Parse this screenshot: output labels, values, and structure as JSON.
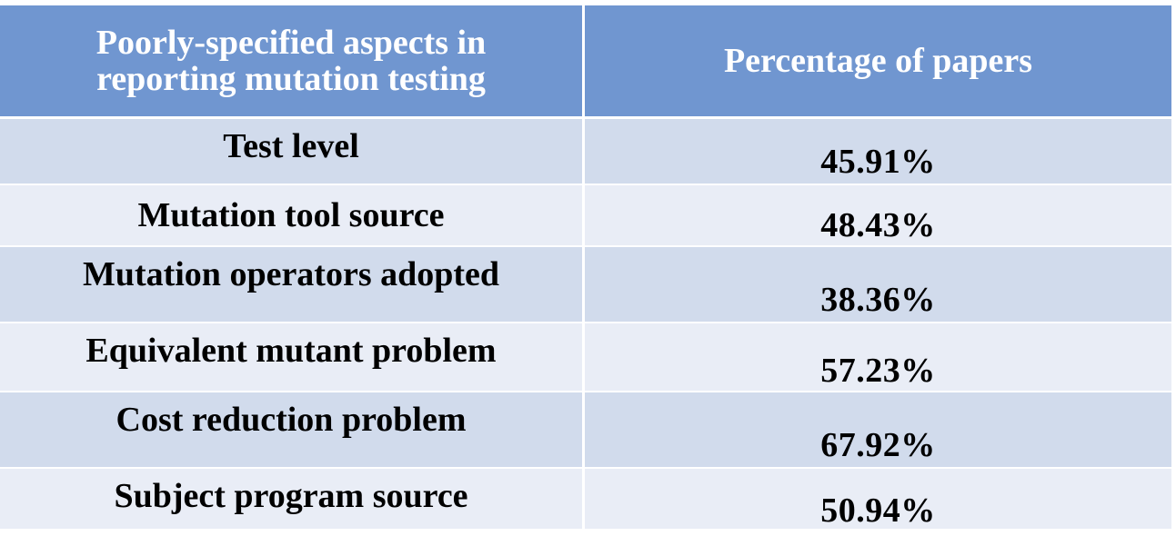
{
  "table": {
    "header": {
      "aspect": "Poorly-specified aspects in reporting mutation testing",
      "percentage": "Percentage of papers"
    },
    "rows": [
      {
        "aspect": "Test level",
        "percentage": "45.91%"
      },
      {
        "aspect": "Mutation tool source",
        "percentage": "48.43%"
      },
      {
        "aspect": "Mutation operators adopted",
        "percentage": "38.36%"
      },
      {
        "aspect": "Equivalent mutant problem",
        "percentage": "57.23%"
      },
      {
        "aspect": "Cost reduction problem",
        "percentage": "67.92%"
      },
      {
        "aspect": "Subject program source",
        "percentage": "50.94%"
      }
    ]
  },
  "colors": {
    "header_bg": "#7096d0",
    "row_odd_bg": "#d1dbec",
    "row_even_bg": "#e9edf6"
  }
}
